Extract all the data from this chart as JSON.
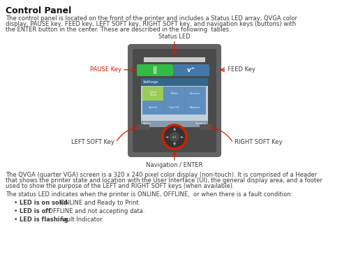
{
  "title": "Control Panel",
  "intro_line1": "The control panel is located on the front of the printer and includes a Status LED array, QVGA color",
  "intro_line2": "display, PAUSE key, FEED key, LEFT SOFT key, RIGHT SOFT key, and navigation keys (buttons) with",
  "intro_line3": "the ENTER button in the center. These are described in the following  tables.",
  "qvga_line1": "The QVGA (quarter VGA) screen is a 320 x 240 pixel color display (non-touch). It is comprised of a Header",
  "qvga_line2": "that shows the printer state and location with the User Interface (UI), the general display area, and a footer",
  "qvga_line3": "used to show the purpose of the LEFT and RIGHT SOFT keys (when available).",
  "status_line": "The status LED indicates when the printer is ONLINE, OFFLINE,  or when there is a fault condition:",
  "bullet1_bold": "LED is on solid",
  "bullet1_rest": ": ONLINE and Ready to Print.",
  "bullet2_bold": "LED is off",
  "bullet2_rest": ": OFFLINE and not accepting data.",
  "bullet3_bold": "LED is flashing",
  "bullet3_rest": ": Fault Indicator.",
  "label_status_led": "Status LED",
  "label_pause": "PAUSE Key",
  "label_feed": "FEED Key",
  "label_left_soft": "LEFT SOFT Key",
  "label_right_soft": "RIGHT SOFT Key",
  "label_nav": "Navigation / ENTER",
  "bg_color": "#ffffff",
  "text_color": "#3a3a3a",
  "label_color": "#3a3a3a",
  "pause_label_color": "#cc2200",
  "red_color": "#cc2200",
  "printer_outer_color": "#636363",
  "printer_inner_color": "#4a4a4a",
  "pause_btn_color": "#33bb44",
  "feed_btn_color": "#4477aa",
  "screen_header_color": "#336688",
  "screen_body_color": "#c0d0dc",
  "screen_footer_color": "#8899aa",
  "icon0_color": "#99cc44",
  "icon1_color": "#5588bb",
  "icon2_color": "#5588bb",
  "icon3_color": "#5588bb",
  "icon4_color": "#5588bb",
  "icon5_color": "#5588bb",
  "led_bar_color": "#cccccc",
  "nav_ring_color": "#cc2200",
  "nav_body_color": "#333333",
  "soft_key_color": "#555555"
}
